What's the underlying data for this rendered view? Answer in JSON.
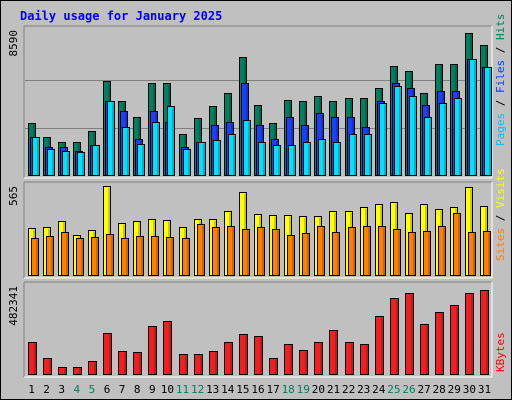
{
  "chart_data": {
    "type": "bar",
    "title": "Daily usage for January 2025",
    "categories": [
      "1",
      "2",
      "3",
      "4",
      "5",
      "6",
      "7",
      "8",
      "9",
      "10",
      "11",
      "12",
      "13",
      "14",
      "15",
      "16",
      "17",
      "18",
      "19",
      "20",
      "21",
      "22",
      "23",
      "24",
      "25",
      "26",
      "27",
      "28",
      "29",
      "30",
      "31"
    ],
    "weekend_days": [
      "4",
      "5",
      "11",
      "12",
      "18",
      "19",
      "25",
      "26"
    ],
    "panels": [
      {
        "ymax": 8590,
        "tick_label": "8590",
        "legend": [
          {
            "text": "Pages",
            "color": "#00c0ff"
          },
          {
            "text": " / ",
            "color": "#000000"
          },
          {
            "text": "Files",
            "color": "#0040ff"
          },
          {
            "text": " / ",
            "color": "#000000"
          },
          {
            "text": "Hits",
            "color": "#00805c"
          }
        ],
        "series": [
          {
            "name": "Hits",
            "color": "#008060",
            "values": [
              3100,
              2300,
              2000,
              2000,
              2650,
              5600,
              4400,
              3500,
              5500,
              5500,
              2500,
              3400,
              4100,
              4900,
              7000,
              4200,
              3100,
              4500,
              4400,
              4700,
              4400,
              4600,
              4600,
              5200,
              6500,
              6200,
              4900,
              6600,
              6600,
              8400,
              7700
            ]
          },
          {
            "name": "Files",
            "color": "#1840ff",
            "values": [
              2300,
              1700,
              1700,
              1500,
              1800,
              4400,
              3800,
              2200,
              3800,
              3200,
              1700,
              2000,
              3000,
              3200,
              5500,
              3000,
              2200,
              3500,
              3000,
              3700,
              3500,
              3500,
              2900,
              4400,
              5500,
              5200,
              4200,
              5000,
              5000,
              6900,
              6400
            ]
          },
          {
            "name": "Pages",
            "color": "#00e0ff",
            "values": [
              2300,
              1600,
              1500,
              1400,
              1800,
              4400,
              2900,
              1900,
              3200,
              4100,
              1600,
              2000,
              2100,
              2500,
              3300,
              2000,
              1800,
              1800,
              2000,
              2200,
              2000,
              2500,
              2500,
              4300,
              5300,
              4700,
              3500,
              4300,
              4600,
              6900,
              6400
            ]
          }
        ]
      },
      {
        "ymax": 565,
        "tick_label": "565",
        "legend": [
          {
            "text": "Sites",
            "color": "#ff8000"
          },
          {
            "text": " / ",
            "color": "#000000"
          },
          {
            "text": "Visits",
            "color": "#ffff00"
          }
        ],
        "series": [
          {
            "name": "Visits",
            "color": "#ffff00",
            "values": [
              300,
              310,
              345,
              255,
              290,
              565,
              330,
              345,
              360,
              350,
              305,
              360,
              360,
              405,
              525,
              390,
              385,
              385,
              375,
              375,
              410,
              405,
              435,
              450,
              465,
              395,
              455,
              420,
              435,
              560,
              440
            ]
          },
          {
            "name": "Sites",
            "color": "#ff8000",
            "values": [
              240,
              250,
              275,
              240,
              245,
              265,
              240,
              250,
              250,
              245,
              240,
              325,
              305,
              315,
              295,
              305,
              295,
              255,
              270,
              315,
              275,
              310,
              315,
              315,
              295,
              275,
              280,
              315,
              395,
              275,
              280
            ]
          }
        ]
      },
      {
        "ymax": 482341,
        "tick_label": "482341",
        "legend": [
          {
            "text": "KBytes",
            "color": "#ff0000"
          }
        ],
        "series": [
          {
            "name": "KBytes",
            "color": "#f02020",
            "values": [
              180000,
              90000,
              45000,
              45000,
              75000,
              230000,
              130000,
              125000,
              265000,
              290000,
              115000,
              115000,
              130000,
              180000,
              220000,
              210000,
              90000,
              170000,
              135000,
              180000,
              245000,
              180000,
              170000,
              320000,
              415000,
              445000,
              275000,
              340000,
              380000,
              445000,
              462000
            ]
          }
        ]
      }
    ]
  }
}
